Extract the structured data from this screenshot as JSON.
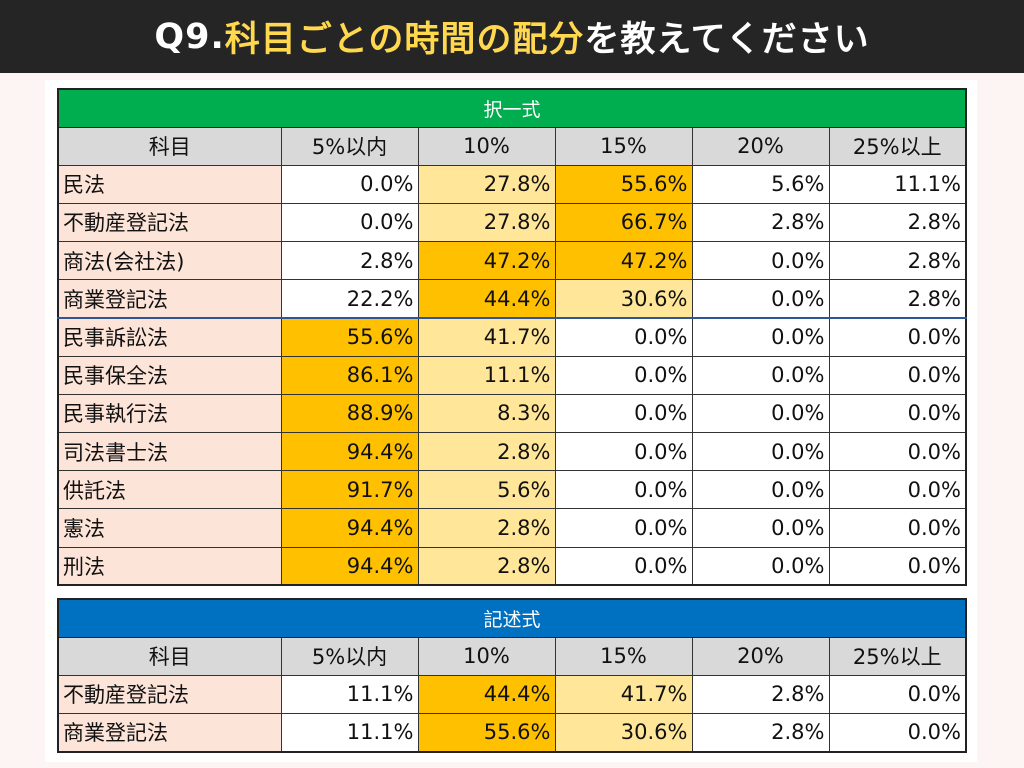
{
  "title": {
    "prefix": "Q9.",
    "highlight": "科目ごとの時間の配分",
    "suffix": "を教えてください"
  },
  "columns": [
    "科目",
    "5%以内",
    "10%",
    "15%",
    "20%",
    "25%以上"
  ],
  "multiple_choice": {
    "label": "択一式",
    "rows": [
      {
        "subject": "民法",
        "values": [
          "0.0%",
          "27.8%",
          "55.6%",
          "5.6%",
          "11.1%"
        ],
        "shade": [
          0,
          1,
          2,
          0,
          0
        ]
      },
      {
        "subject": "不動産登記法",
        "values": [
          "0.0%",
          "27.8%",
          "66.7%",
          "2.8%",
          "2.8%"
        ],
        "shade": [
          0,
          1,
          2,
          0,
          0
        ]
      },
      {
        "subject": "商法(会社法)",
        "values": [
          "2.8%",
          "47.2%",
          "47.2%",
          "0.0%",
          "2.8%"
        ],
        "shade": [
          0,
          2,
          2,
          0,
          0
        ]
      },
      {
        "subject": "商業登記法",
        "values": [
          "22.2%",
          "44.4%",
          "30.6%",
          "0.0%",
          "2.8%"
        ],
        "shade": [
          0,
          2,
          1,
          0,
          0
        ]
      },
      {
        "subject": "民事訴訟法",
        "values": [
          "55.6%",
          "41.7%",
          "0.0%",
          "0.0%",
          "0.0%"
        ],
        "shade": [
          2,
          1,
          0,
          0,
          0
        ]
      },
      {
        "subject": "民事保全法",
        "values": [
          "86.1%",
          "11.1%",
          "0.0%",
          "0.0%",
          "0.0%"
        ],
        "shade": [
          2,
          1,
          0,
          0,
          0
        ]
      },
      {
        "subject": "民事執行法",
        "values": [
          "88.9%",
          "8.3%",
          "0.0%",
          "0.0%",
          "0.0%"
        ],
        "shade": [
          2,
          1,
          0,
          0,
          0
        ]
      },
      {
        "subject": "司法書士法",
        "values": [
          "94.4%",
          "2.8%",
          "0.0%",
          "0.0%",
          "0.0%"
        ],
        "shade": [
          2,
          1,
          0,
          0,
          0
        ]
      },
      {
        "subject": "供託法",
        "values": [
          "91.7%",
          "5.6%",
          "0.0%",
          "0.0%",
          "0.0%"
        ],
        "shade": [
          2,
          1,
          0,
          0,
          0
        ]
      },
      {
        "subject": "憲法",
        "values": [
          "94.4%",
          "2.8%",
          "0.0%",
          "0.0%",
          "0.0%"
        ],
        "shade": [
          2,
          1,
          0,
          0,
          0
        ]
      },
      {
        "subject": "刑法",
        "values": [
          "94.4%",
          "2.8%",
          "0.0%",
          "0.0%",
          "0.0%"
        ],
        "shade": [
          2,
          1,
          0,
          0,
          0
        ]
      }
    ]
  },
  "written": {
    "label": "記述式",
    "rows": [
      {
        "subject": "不動産登記法",
        "values": [
          "11.1%",
          "44.4%",
          "41.7%",
          "2.8%",
          "0.0%"
        ],
        "shade": [
          0,
          2,
          1,
          0,
          0
        ]
      },
      {
        "subject": "商業登記法",
        "values": [
          "11.1%",
          "55.6%",
          "30.6%",
          "2.8%",
          "0.0%"
        ],
        "shade": [
          0,
          2,
          1,
          0,
          0
        ]
      }
    ]
  },
  "colors": {
    "green_band": "#00ad4f",
    "blue_band": "#0070c0",
    "top_shade": "#ffc000",
    "second_shade": "#ffe699",
    "subject_bg": "#fde4d9"
  }
}
